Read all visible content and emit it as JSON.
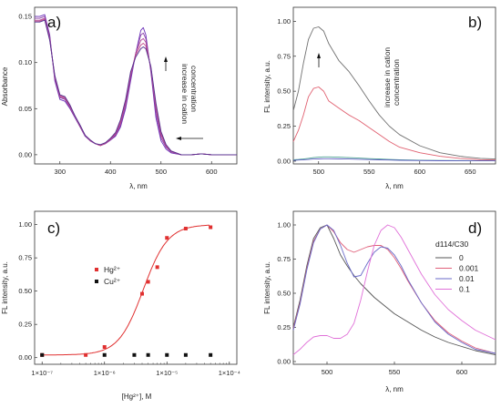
{
  "chart_data": [
    {
      "panel": "a)",
      "type": "line",
      "xlabel": "λ, nm",
      "ylabel": "Absorbance",
      "xlim": [
        250,
        650
      ],
      "ylim": [
        -0.01,
        0.16
      ],
      "xticks": [
        300,
        400,
        500,
        600
      ],
      "yticks": [
        0.0,
        0.05,
        0.1,
        0.15
      ],
      "annotation": [
        "increase in cation",
        "concentration"
      ],
      "x": [
        250,
        260,
        270,
        280,
        290,
        300,
        310,
        320,
        330,
        340,
        350,
        360,
        370,
        380,
        390,
        400,
        410,
        420,
        430,
        440,
        450,
        460,
        465,
        470,
        480,
        490,
        500,
        510,
        520,
        540,
        560,
        580,
        600,
        620,
        650
      ],
      "series": [
        {
          "color": "#6a2fb8",
          "values": [
            0.15,
            0.15,
            0.152,
            0.13,
            0.08,
            0.06,
            0.058,
            0.05,
            0.04,
            0.03,
            0.02,
            0.015,
            0.012,
            0.01,
            0.012,
            0.016,
            0.02,
            0.03,
            0.05,
            0.08,
            0.11,
            0.135,
            0.138,
            0.13,
            0.09,
            0.04,
            0.015,
            0.006,
            0.002,
            0.0,
            0.0,
            0.001,
            0.0,
            0.0,
            0.0
          ]
        },
        {
          "color": "#8a3fa8",
          "values": [
            0.148,
            0.148,
            0.15,
            0.128,
            0.082,
            0.062,
            0.06,
            0.051,
            0.041,
            0.03,
            0.02,
            0.015,
            0.012,
            0.01,
            0.012,
            0.016,
            0.021,
            0.032,
            0.053,
            0.083,
            0.11,
            0.13,
            0.132,
            0.126,
            0.092,
            0.045,
            0.018,
            0.008,
            0.003,
            0.0,
            0.0,
            0.001,
            0.0,
            0.0,
            0.0
          ]
        },
        {
          "color": "#b04a98",
          "values": [
            0.146,
            0.146,
            0.148,
            0.126,
            0.084,
            0.063,
            0.061,
            0.052,
            0.041,
            0.031,
            0.021,
            0.015,
            0.012,
            0.01,
            0.012,
            0.017,
            0.022,
            0.034,
            0.056,
            0.086,
            0.11,
            0.124,
            0.126,
            0.122,
            0.094,
            0.05,
            0.021,
            0.009,
            0.003,
            0.0,
            0.0,
            0.001,
            0.0,
            0.0,
            0.0
          ]
        },
        {
          "color": "#c04888",
          "values": [
            0.145,
            0.145,
            0.147,
            0.125,
            0.085,
            0.064,
            0.062,
            0.053,
            0.042,
            0.031,
            0.021,
            0.016,
            0.012,
            0.01,
            0.013,
            0.017,
            0.023,
            0.036,
            0.058,
            0.088,
            0.108,
            0.119,
            0.121,
            0.118,
            0.095,
            0.053,
            0.023,
            0.01,
            0.004,
            0.0,
            0.0,
            0.001,
            0.0,
            0.0,
            0.0
          ]
        },
        {
          "color": "#503090",
          "values": [
            0.144,
            0.144,
            0.146,
            0.124,
            0.086,
            0.065,
            0.063,
            0.054,
            0.042,
            0.032,
            0.021,
            0.016,
            0.012,
            0.011,
            0.013,
            0.018,
            0.024,
            0.038,
            0.06,
            0.09,
            0.106,
            0.115,
            0.117,
            0.115,
            0.096,
            0.056,
            0.025,
            0.011,
            0.004,
            0.0,
            0.0,
            0.001,
            0.0,
            0.0,
            0.0
          ]
        }
      ]
    },
    {
      "panel": "b)",
      "type": "line",
      "xlabel": "λ, nm",
      "ylabel": "FL intensity, a.u.",
      "xlim": [
        475,
        675
      ],
      "ylim": [
        -0.02,
        1.1
      ],
      "xticks": [
        500,
        550,
        600,
        650
      ],
      "yticks": [
        0.0,
        0.25,
        0.5,
        0.75,
        1.0
      ],
      "annotation": [
        "increase in cation",
        "concentration"
      ],
      "x": [
        475,
        480,
        485,
        490,
        495,
        500,
        505,
        510,
        520,
        530,
        540,
        550,
        560,
        570,
        580,
        600,
        620,
        640,
        660,
        675
      ],
      "series": [
        {
          "color": "#707070",
          "values": [
            0.36,
            0.5,
            0.7,
            0.87,
            0.95,
            0.96,
            0.93,
            0.84,
            0.72,
            0.64,
            0.54,
            0.43,
            0.33,
            0.25,
            0.19,
            0.11,
            0.06,
            0.035,
            0.02,
            0.015
          ]
        },
        {
          "color": "#e06070",
          "values": [
            0.14,
            0.22,
            0.33,
            0.46,
            0.52,
            0.53,
            0.5,
            0.43,
            0.38,
            0.33,
            0.29,
            0.24,
            0.19,
            0.14,
            0.1,
            0.06,
            0.035,
            0.02,
            0.01,
            0.008
          ]
        },
        {
          "color": "#4aa090",
          "values": [
            0.01,
            0.012,
            0.015,
            0.02,
            0.025,
            0.028,
            0.03,
            0.03,
            0.028,
            0.025,
            0.022,
            0.018,
            0.015,
            0.012,
            0.01,
            0.007,
            0.005,
            0.004,
            0.003,
            0.003
          ]
        },
        {
          "color": "#6060c0",
          "values": [
            0.005,
            0.008,
            0.01,
            0.012,
            0.015,
            0.016,
            0.017,
            0.017,
            0.016,
            0.015,
            0.013,
            0.011,
            0.009,
            0.008,
            0.006,
            0.004,
            0.003,
            0.002,
            0.002,
            0.002
          ]
        }
      ]
    },
    {
      "panel": "c)",
      "type": "scatter",
      "xlabel": "[Hg²⁺], M",
      "ylabel": "FL intensity, a.u.",
      "xscale": "log",
      "xlim": [
        1e-07,
        0.0001
      ],
      "ylim": [
        -0.05,
        1.1
      ],
      "xticks": [
        "1×10⁻⁷",
        "1×10⁻⁶",
        "1×10⁻⁵",
        "1×10⁻⁴"
      ],
      "yticks": [
        0.0,
        0.25,
        0.5,
        0.75,
        1.0
      ],
      "series": [
        {
          "name": "Hg²⁺",
          "color": "#e03030",
          "marker": "square",
          "x": [
            1e-07,
            5e-07,
            1e-06,
            4e-06,
            5e-06,
            7e-06,
            1e-05,
            2e-05,
            5e-05
          ],
          "values": [
            0.02,
            0.02,
            0.08,
            0.48,
            0.57,
            0.68,
            0.9,
            0.97,
            0.98
          ]
        },
        {
          "name": "Cu²⁺",
          "color": "#111111",
          "marker": "square",
          "x": [
            1e-07,
            1e-06,
            3e-06,
            5e-06,
            1e-05,
            2e-05,
            5e-05
          ],
          "values": [
            0.02,
            0.02,
            0.02,
            0.02,
            0.02,
            0.02,
            0.02
          ]
        }
      ],
      "fit": {
        "color": "#e03030",
        "bottom": 0.02,
        "top": 1.0,
        "log_x50": -5.38,
        "hill": 2.2
      }
    },
    {
      "panel": "d)",
      "type": "line",
      "xlabel": "λ, nm",
      "ylabel": "FL intensity, a.u.",
      "xlim": [
        475,
        625
      ],
      "ylim": [
        -0.02,
        1.1
      ],
      "xticks": [
        500,
        550,
        600
      ],
      "yticks": [
        0.0,
        0.25,
        0.5,
        0.75,
        1.0
      ],
      "legend_title": "d114/C30",
      "x": [
        475,
        480,
        485,
        490,
        495,
        500,
        505,
        510,
        515,
        520,
        525,
        530,
        535,
        540,
        545,
        550,
        555,
        560,
        570,
        580,
        590,
        600,
        610,
        625
      ],
      "series": [
        {
          "name": "0",
          "color": "#555555",
          "values": [
            0.25,
            0.45,
            0.7,
            0.9,
            0.98,
            1.0,
            0.9,
            0.78,
            0.7,
            0.63,
            0.57,
            0.52,
            0.47,
            0.43,
            0.39,
            0.35,
            0.32,
            0.29,
            0.23,
            0.18,
            0.14,
            0.11,
            0.08,
            0.05
          ]
        },
        {
          "name": "0.001",
          "color": "#e0607a",
          "values": [
            0.24,
            0.43,
            0.68,
            0.88,
            0.97,
            1.0,
            0.95,
            0.87,
            0.82,
            0.8,
            0.82,
            0.84,
            0.85,
            0.85,
            0.82,
            0.76,
            0.68,
            0.59,
            0.43,
            0.3,
            0.21,
            0.15,
            0.1,
            0.06
          ]
        },
        {
          "name": "0.01",
          "color": "#6a6ac8",
          "values": [
            0.23,
            0.42,
            0.67,
            0.87,
            0.97,
            1.0,
            0.96,
            0.85,
            0.72,
            0.62,
            0.63,
            0.72,
            0.8,
            0.84,
            0.83,
            0.78,
            0.7,
            0.6,
            0.43,
            0.29,
            0.2,
            0.14,
            0.09,
            0.06
          ]
        },
        {
          "name": "0.1",
          "color": "#e070d8",
          "values": [
            0.05,
            0.09,
            0.14,
            0.18,
            0.19,
            0.19,
            0.17,
            0.17,
            0.2,
            0.28,
            0.45,
            0.66,
            0.85,
            0.96,
            1.0,
            0.98,
            0.91,
            0.82,
            0.64,
            0.49,
            0.38,
            0.3,
            0.23,
            0.16
          ]
        }
      ]
    }
  ]
}
